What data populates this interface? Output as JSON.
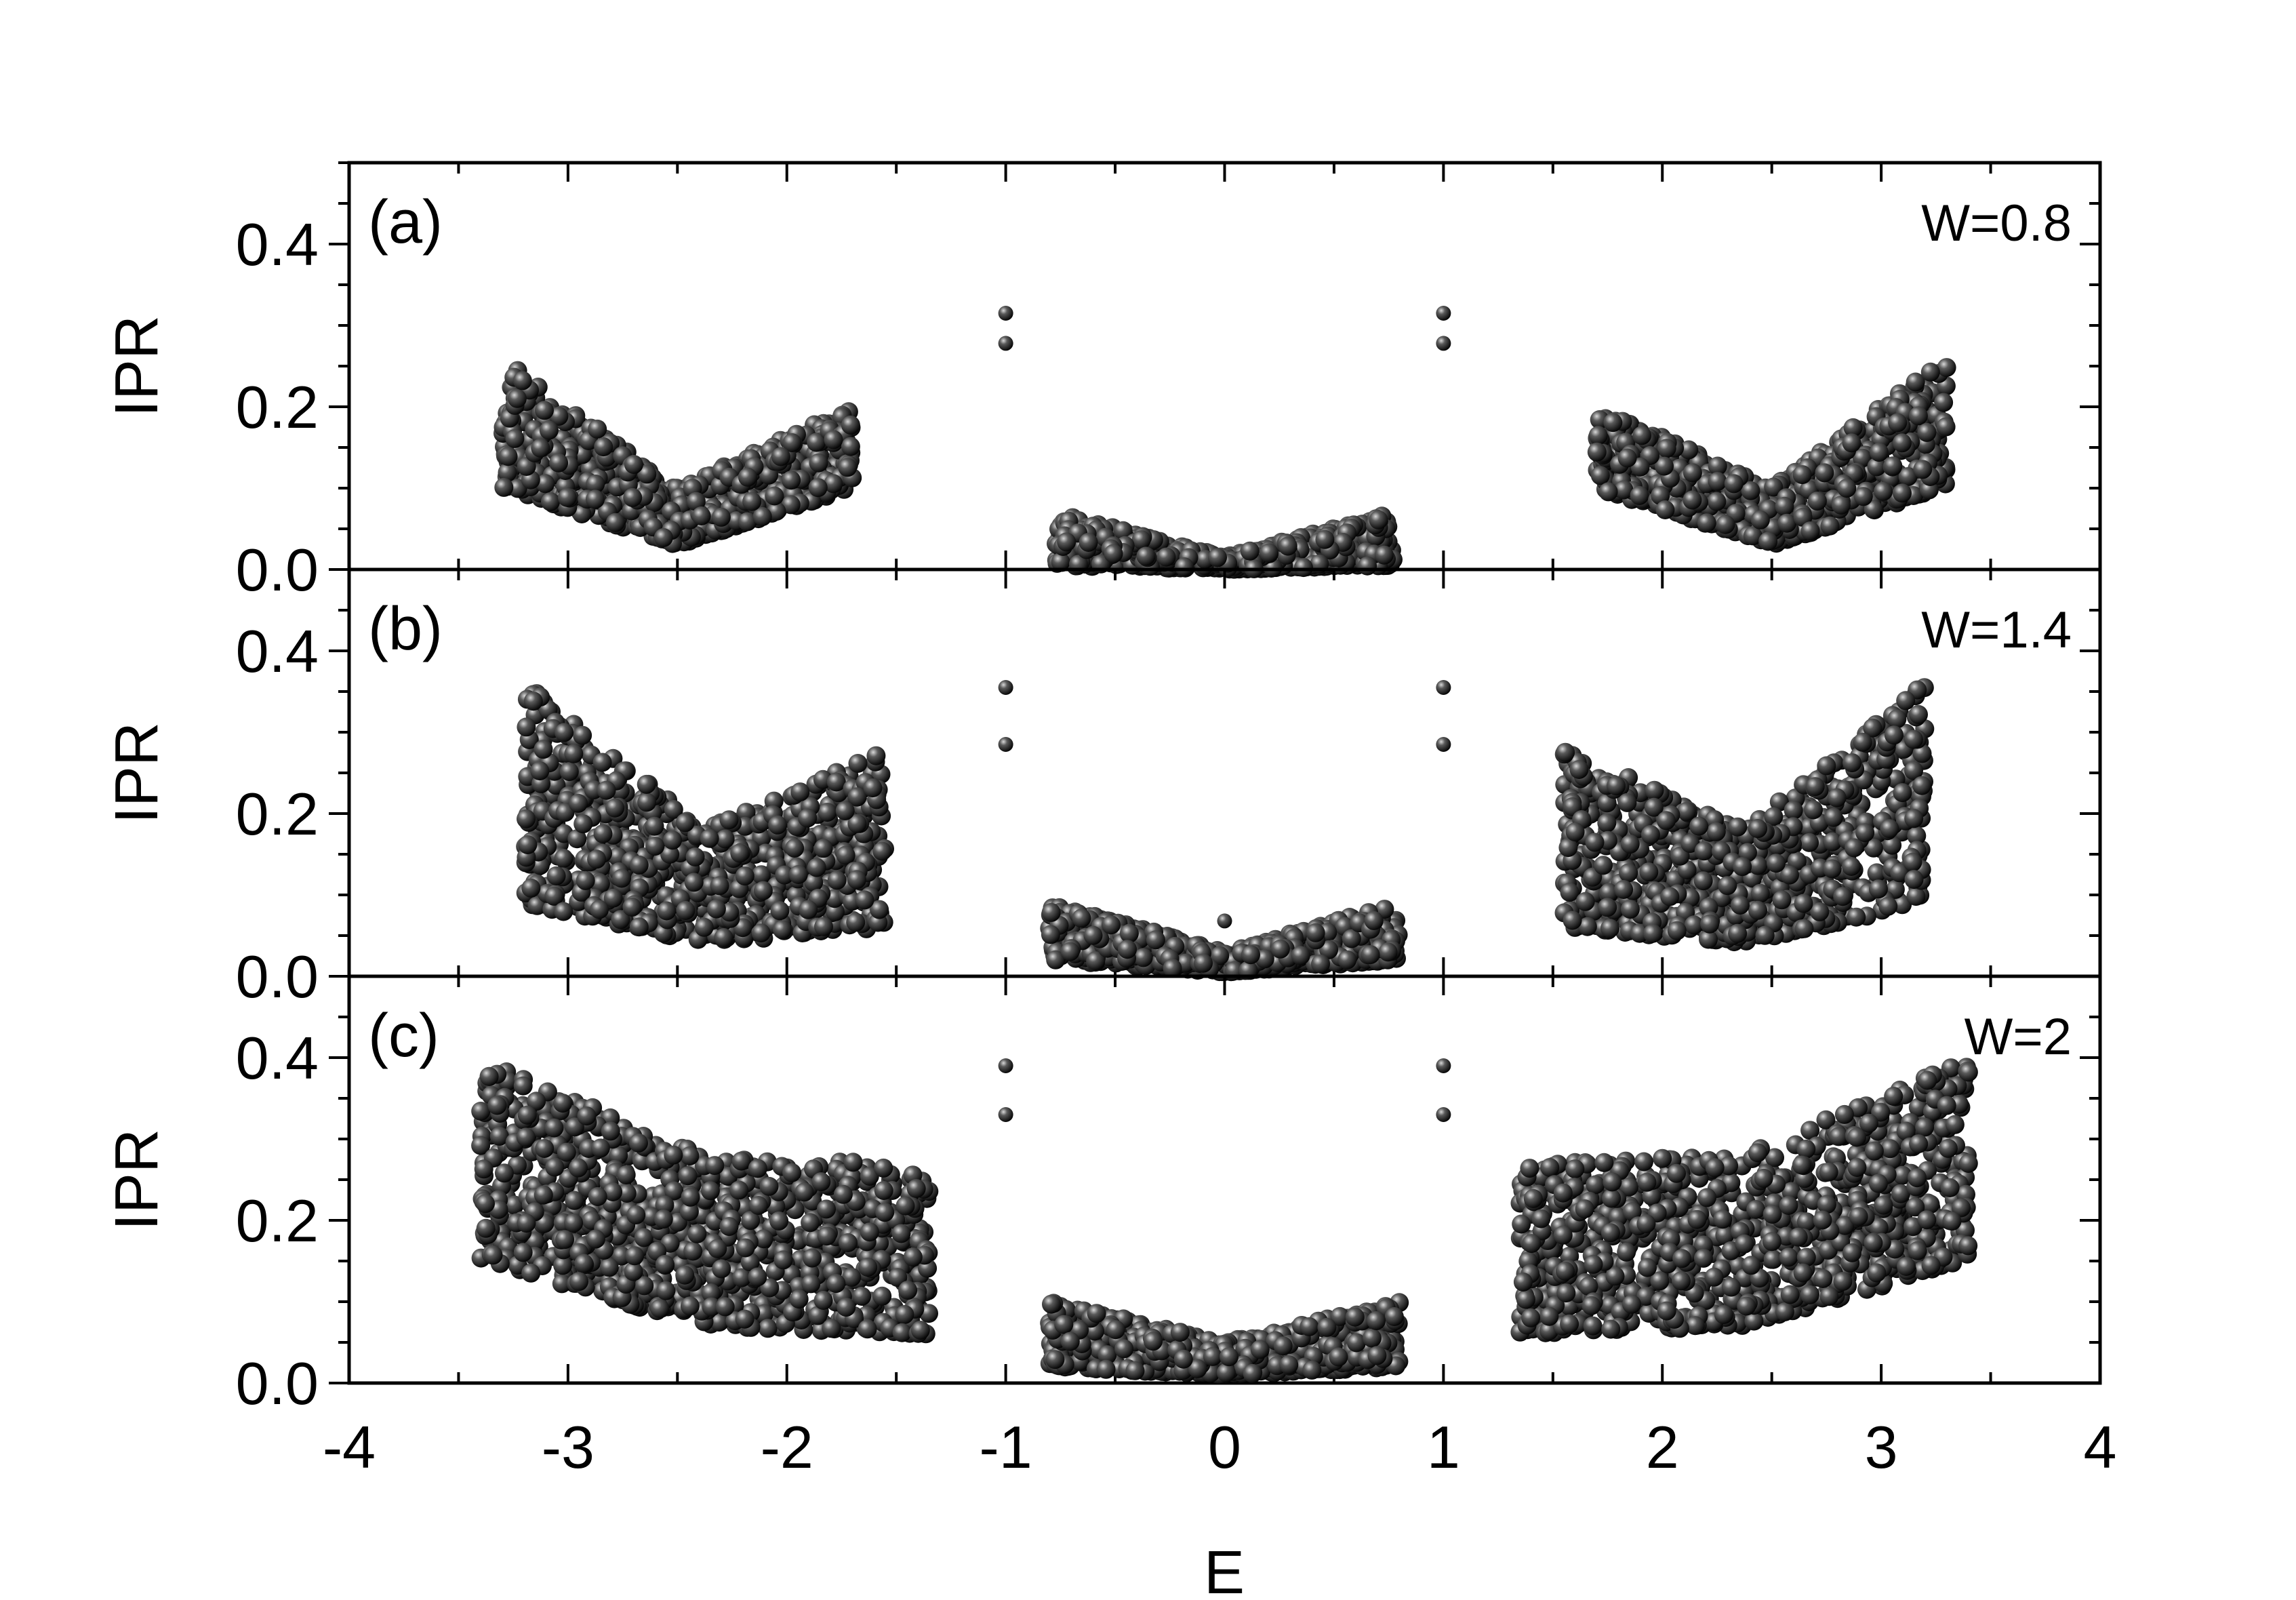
{
  "chart_data": [
    {
      "type": "scatter",
      "panel_label": "(a)",
      "annotation": "W=0.8",
      "ylabel": "IPR",
      "ylim": [
        0,
        0.5
      ],
      "yticks": [
        "0.0",
        "0.2",
        "0.4"
      ],
      "isolated_points": [
        [
          -1,
          0.315
        ],
        [
          -1,
          0.278
        ],
        [
          1,
          0.315
        ],
        [
          1,
          0.278
        ]
      ],
      "bands": [
        {
          "x": [
            -3.3,
            -1.7
          ],
          "bottom": [
            0.1,
            0.03,
            0.1
          ],
          "top": [
            0.26,
            0.1,
            0.2
          ]
        },
        {
          "x": [
            -0.77,
            0.77
          ],
          "bottom": [
            0.005,
            0.0,
            0.005
          ],
          "top": [
            0.07,
            0.015,
            0.07
          ]
        },
        {
          "x": [
            1.7,
            3.3
          ],
          "bottom": [
            0.1,
            0.03,
            0.1
          ],
          "top": [
            0.2,
            0.1,
            0.26
          ]
        }
      ]
    },
    {
      "type": "scatter",
      "panel_label": "(b)",
      "annotation": "W=1.4",
      "ylabel": "IPR",
      "ylim": [
        0,
        0.5
      ],
      "yticks": [
        "0.0",
        "0.2",
        "0.4"
      ],
      "isolated_points": [
        [
          -1,
          0.355
        ],
        [
          -1,
          0.285
        ],
        [
          1,
          0.355
        ],
        [
          1,
          0.285
        ],
        [
          0,
          0.068
        ]
      ],
      "bands": [
        {
          "x": [
            -3.2,
            -1.55
          ],
          "bottom": [
            0.09,
            0.04,
            0.06
          ],
          "top": [
            0.36,
            0.18,
            0.28
          ]
        },
        {
          "x": [
            -0.8,
            0.8
          ],
          "bottom": [
            0.02,
            0.005,
            0.02
          ],
          "top": [
            0.09,
            0.03,
            0.09
          ]
        },
        {
          "x": [
            1.55,
            3.2
          ],
          "bottom": [
            0.06,
            0.04,
            0.09
          ],
          "top": [
            0.28,
            0.18,
            0.36
          ]
        }
      ]
    },
    {
      "type": "scatter",
      "panel_label": "(c)",
      "annotation": "W=2",
      "ylabel": "IPR",
      "xlabel": "E",
      "xlim": [
        -4,
        4
      ],
      "xticks": [
        "-4",
        "-3",
        "-2",
        "-1",
        "0",
        "1",
        "2",
        "3",
        "4"
      ],
      "ylim": [
        0,
        0.5
      ],
      "yticks": [
        "0.0",
        "0.2",
        "0.4"
      ],
      "isolated_points": [
        [
          -1,
          0.39
        ],
        [
          -1,
          0.33
        ],
        [
          1,
          0.39
        ],
        [
          1,
          0.33
        ]
      ],
      "bands": [
        {
          "x": [
            -3.4,
            -1.35
          ],
          "bottom": [
            0.15,
            0.07,
            0.06
          ],
          "top": [
            0.4,
            0.28,
            0.27
          ]
        },
        {
          "x": [
            -0.8,
            0.8
          ],
          "bottom": [
            0.02,
            0.01,
            0.02
          ],
          "top": [
            0.1,
            0.05,
            0.1
          ]
        },
        {
          "x": [
            1.35,
            3.4
          ],
          "bottom": [
            0.06,
            0.07,
            0.15
          ],
          "top": [
            0.27,
            0.28,
            0.4
          ]
        }
      ]
    }
  ]
}
